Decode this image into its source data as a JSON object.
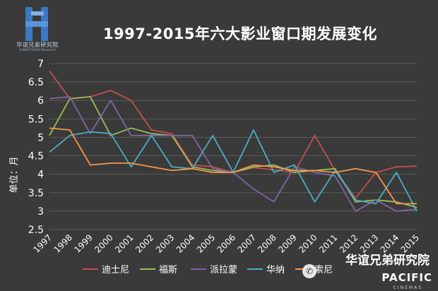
{
  "logo": {
    "text": "华谊兄弟研究院",
    "sub_text": "H.BROTHERS Research"
  },
  "watermark": {
    "text": "华谊兄弟研究院",
    "brand": "PACIFIC",
    "sub_text": "CINEMAS"
  },
  "colors": {
    "background": "#3a3a3a",
    "grid": "#5a5a5a",
    "text": "#ffffff",
    "series": [
      "#c0504d",
      "#9bbb59",
      "#8064a2",
      "#4bacc6",
      "#f79646"
    ]
  },
  "chart_data": {
    "type": "line",
    "title": "1997-2015年六大影业窗口期发展变化",
    "ylabel": "单位：月",
    "xlabel": "",
    "ylim": [
      2.5,
      7
    ],
    "yticks": [
      "2.5",
      "3",
      "3.5",
      "4",
      "4.5",
      "5",
      "5.5",
      "6",
      "6.5",
      "7"
    ],
    "grid": true,
    "legend_position": "bottom",
    "x": [
      "1997",
      "1998",
      "1999",
      "2000",
      "2001",
      "2002",
      "2003",
      "2004",
      "2005",
      "2006",
      "2007",
      "2008",
      "2009",
      "2010",
      "2011",
      "2012",
      "2013",
      "2014",
      "2015"
    ],
    "series": [
      {
        "name": "迪士尼",
        "values": [
          6.8,
          6.05,
          6.1,
          6.27,
          6.0,
          5.2,
          5.1,
          4.25,
          4.2,
          4.05,
          4.18,
          4.12,
          4.05,
          5.05,
          4.1,
          3.35,
          4.05,
          4.2,
          4.22
        ]
      },
      {
        "name": "福斯",
        "values": [
          5.05,
          6.05,
          6.1,
          5.05,
          5.25,
          5.1,
          5.05,
          4.2,
          4.1,
          4.05,
          4.2,
          4.25,
          4.05,
          4.1,
          4.15,
          3.25,
          3.3,
          3.25,
          3.1
        ]
      },
      {
        "name": "派拉蒙",
        "values": [
          6.05,
          6.1,
          5.1,
          6.0,
          5.05,
          5.05,
          5.05,
          5.05,
          4.15,
          4.05,
          3.6,
          3.25,
          4.2,
          4.05,
          3.95,
          3.0,
          3.3,
          3.0,
          3.05
        ]
      },
      {
        "name": "华纳",
        "values": [
          4.6,
          5.05,
          5.15,
          5.1,
          4.2,
          5.05,
          4.2,
          4.15,
          5.05,
          4.05,
          5.2,
          4.05,
          4.25,
          3.25,
          4.1,
          3.3,
          3.2,
          4.05,
          3.0
        ]
      },
      {
        "name": "索尼",
        "values": [
          5.25,
          5.2,
          4.25,
          4.3,
          4.3,
          4.2,
          4.1,
          4.15,
          4.05,
          4.05,
          4.25,
          4.2,
          4.1,
          4.1,
          4.05,
          4.15,
          4.05,
          3.2,
          3.2
        ]
      }
    ]
  }
}
